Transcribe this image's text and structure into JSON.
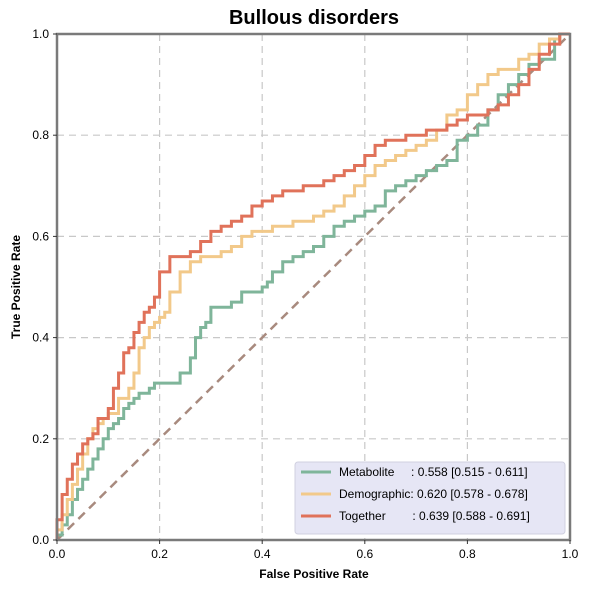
{
  "chart_data": {
    "type": "line",
    "title": "Bullous disorders",
    "xlabel": "False Positive Rate",
    "ylabel": "True Positive Rate",
    "xlim": [
      0,
      1
    ],
    "ylim": [
      0,
      1
    ],
    "xticks": [
      "0.0",
      "0.2",
      "0.4",
      "0.6",
      "0.8",
      "1.0"
    ],
    "yticks": [
      "0.0",
      "0.2",
      "0.4",
      "0.6",
      "0.8",
      "1.0"
    ],
    "grid": true,
    "legend_position": "lower-right",
    "diagonal": {
      "x": [
        0,
        1
      ],
      "y": [
        0,
        1
      ],
      "color": "#a88a7e"
    },
    "series": [
      {
        "name": "Metabolite     : 0.558 [0.515 - 0.611]",
        "color": "#7fb59a",
        "x": [
          0,
          0.01,
          0.02,
          0.03,
          0.04,
          0.05,
          0.06,
          0.07,
          0.08,
          0.09,
          0.1,
          0.11,
          0.12,
          0.13,
          0.14,
          0.15,
          0.16,
          0.17,
          0.18,
          0.19,
          0.2,
          0.22,
          0.24,
          0.26,
          0.27,
          0.28,
          0.29,
          0.3,
          0.32,
          0.34,
          0.36,
          0.38,
          0.4,
          0.41,
          0.42,
          0.44,
          0.46,
          0.48,
          0.5,
          0.52,
          0.54,
          0.56,
          0.58,
          0.6,
          0.62,
          0.64,
          0.66,
          0.68,
          0.7,
          0.72,
          0.74,
          0.76,
          0.78,
          0.8,
          0.82,
          0.84,
          0.86,
          0.88,
          0.9,
          0.92,
          0.94,
          0.96,
          0.97,
          0.98,
          1.0
        ],
        "y": [
          0,
          0.01,
          0.03,
          0.05,
          0.08,
          0.1,
          0.12,
          0.14,
          0.16,
          0.18,
          0.2,
          0.22,
          0.23,
          0.24,
          0.26,
          0.27,
          0.28,
          0.29,
          0.29,
          0.3,
          0.31,
          0.31,
          0.31,
          0.33,
          0.36,
          0.4,
          0.42,
          0.43,
          0.46,
          0.46,
          0.47,
          0.49,
          0.49,
          0.5,
          0.51,
          0.53,
          0.55,
          0.56,
          0.57,
          0.58,
          0.6,
          0.62,
          0.63,
          0.64,
          0.65,
          0.66,
          0.69,
          0.7,
          0.71,
          0.72,
          0.73,
          0.74,
          0.75,
          0.79,
          0.8,
          0.82,
          0.85,
          0.88,
          0.9,
          0.92,
          0.94,
          0.95,
          0.95,
          0.99,
          1.0
        ]
      },
      {
        "name": "Demographic: 0.620 [0.578 - 0.678]",
        "color": "#f2c98a",
        "x": [
          0,
          0.01,
          0.02,
          0.03,
          0.04,
          0.05,
          0.06,
          0.07,
          0.08,
          0.09,
          0.1,
          0.12,
          0.14,
          0.15,
          0.16,
          0.17,
          0.18,
          0.19,
          0.2,
          0.21,
          0.22,
          0.24,
          0.26,
          0.28,
          0.3,
          0.32,
          0.34,
          0.36,
          0.38,
          0.4,
          0.42,
          0.44,
          0.46,
          0.48,
          0.5,
          0.52,
          0.54,
          0.56,
          0.58,
          0.6,
          0.62,
          0.64,
          0.66,
          0.68,
          0.7,
          0.72,
          0.74,
          0.76,
          0.78,
          0.8,
          0.82,
          0.84,
          0.86,
          0.88,
          0.9,
          0.92,
          0.94,
          0.96,
          0.98,
          1.0
        ],
        "y": [
          0,
          0.02,
          0.05,
          0.08,
          0.11,
          0.14,
          0.17,
          0.2,
          0.22,
          0.23,
          0.24,
          0.25,
          0.28,
          0.3,
          0.33,
          0.38,
          0.4,
          0.42,
          0.43,
          0.44,
          0.45,
          0.49,
          0.53,
          0.55,
          0.56,
          0.56,
          0.57,
          0.58,
          0.6,
          0.61,
          0.61,
          0.62,
          0.62,
          0.63,
          0.63,
          0.64,
          0.65,
          0.66,
          0.68,
          0.7,
          0.72,
          0.74,
          0.75,
          0.76,
          0.77,
          0.78,
          0.79,
          0.81,
          0.84,
          0.85,
          0.88,
          0.9,
          0.92,
          0.93,
          0.93,
          0.95,
          0.96,
          0.98,
          0.99,
          1.0
        ]
      },
      {
        "name": "Together        : 0.639 [0.588 - 0.691]",
        "color": "#e0725a",
        "x": [
          0,
          0.01,
          0.02,
          0.03,
          0.04,
          0.05,
          0.06,
          0.07,
          0.08,
          0.09,
          0.1,
          0.11,
          0.12,
          0.13,
          0.14,
          0.15,
          0.16,
          0.17,
          0.18,
          0.19,
          0.2,
          0.22,
          0.24,
          0.26,
          0.28,
          0.3,
          0.32,
          0.34,
          0.36,
          0.38,
          0.4,
          0.42,
          0.44,
          0.46,
          0.48,
          0.5,
          0.52,
          0.54,
          0.56,
          0.58,
          0.6,
          0.62,
          0.64,
          0.66,
          0.68,
          0.7,
          0.72,
          0.74,
          0.76,
          0.78,
          0.8,
          0.82,
          0.84,
          0.86,
          0.88,
          0.9,
          0.92,
          0.94,
          0.96,
          0.98,
          1.0
        ],
        "y": [
          0,
          0.04,
          0.09,
          0.12,
          0.15,
          0.17,
          0.19,
          0.2,
          0.21,
          0.24,
          0.24,
          0.26,
          0.3,
          0.33,
          0.37,
          0.38,
          0.41,
          0.43,
          0.45,
          0.46,
          0.48,
          0.53,
          0.56,
          0.56,
          0.57,
          0.59,
          0.61,
          0.62,
          0.63,
          0.64,
          0.66,
          0.67,
          0.68,
          0.69,
          0.69,
          0.7,
          0.7,
          0.71,
          0.72,
          0.73,
          0.74,
          0.76,
          0.78,
          0.79,
          0.79,
          0.8,
          0.8,
          0.81,
          0.81,
          0.82,
          0.83,
          0.84,
          0.84,
          0.85,
          0.86,
          0.88,
          0.9,
          0.93,
          0.96,
          0.98,
          1.0
        ]
      }
    ]
  }
}
